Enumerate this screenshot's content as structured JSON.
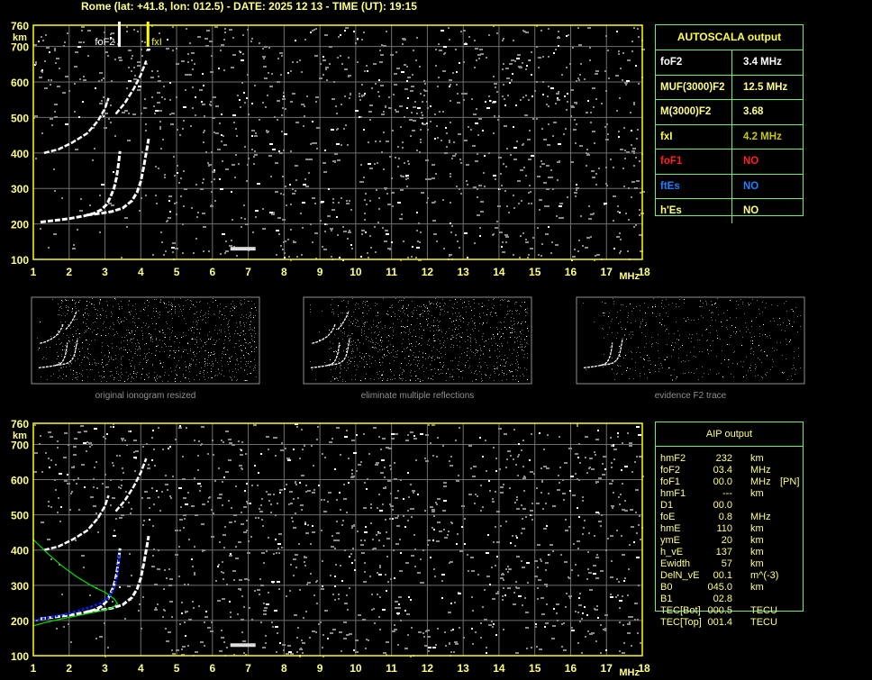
{
  "header": {
    "title": "Rome (lat: +41.8, lon: 012.5) - DATE: 2025 12 13 - TIME (UT): 19:15"
  },
  "colors": {
    "axis": "#ffff00",
    "label": "#ffff80",
    "grid": "#707070",
    "trace": "#ffffff",
    "border": "#70f070",
    "foF1": "#ff2020",
    "ftEs": "#1e80ff",
    "fxI": "#d0d000",
    "model_green": "#00e000",
    "model_blue": "#0020ff"
  },
  "autoscala": {
    "title": "AUTOSCALA output",
    "rows": [
      {
        "label": "foF2",
        "value": "3.4 MHz",
        "label_color": "#ffffff",
        "value_color": "#ffffff"
      },
      {
        "label": "MUF(3000)F2",
        "value": "12.5 MHz",
        "label_color": "#ffff80",
        "value_color": "#ffff80"
      },
      {
        "label": "M(3000)F2",
        "value": "3.68",
        "label_color": "#ffff80",
        "value_color": "#ffff80"
      },
      {
        "label": "fxI",
        "value": "4.2 MHz",
        "label_color": "#ffff40",
        "value_color": "#c8c800"
      },
      {
        "label": "foF1",
        "value": "NO",
        "label_color": "#ff2020",
        "value_color": "#ff2020"
      },
      {
        "label": "ftEs",
        "value": "NO",
        "label_color": "#1e80ff",
        "value_color": "#1e80ff"
      },
      {
        "label": "h'Es",
        "value": "NO",
        "label_color": "#ffff80",
        "value_color": "#ffff80"
      }
    ]
  },
  "aip": {
    "title": "AIP output",
    "rows": [
      {
        "label": "hmF2",
        "value": "232",
        "unit": "km",
        "extra": ""
      },
      {
        "label": "foF2",
        "value": "03.4",
        "unit": "MHz",
        "extra": ""
      },
      {
        "label": "foF1",
        "value": "00.0",
        "unit": "MHz",
        "extra": "[PN]"
      },
      {
        "label": "hmF1",
        "value": "---",
        "unit": "km",
        "extra": ""
      },
      {
        "label": "D1",
        "value": "00.0",
        "unit": "",
        "extra": ""
      },
      {
        "label": "foE",
        "value": "0.8",
        "unit": "MHz",
        "extra": ""
      },
      {
        "label": "hmE",
        "value": "110",
        "unit": "km",
        "extra": ""
      },
      {
        "label": "ymE",
        "value": "20",
        "unit": "km",
        "extra": ""
      },
      {
        "label": "h_vE",
        "value": "137",
        "unit": "km",
        "extra": ""
      },
      {
        "label": "Ewidth",
        "value": "57",
        "unit": "km",
        "extra": ""
      },
      {
        "label": "DelN_vE",
        "value": "00.1",
        "unit": "m^(-3)",
        "extra": ""
      },
      {
        "label": "B0",
        "value": "045.0",
        "unit": "km",
        "extra": ""
      },
      {
        "label": "B1",
        "value": "02.8",
        "unit": "",
        "extra": ""
      },
      {
        "label": "TEC[Bot]",
        "value": "000.5",
        "unit": "TECU",
        "extra": ""
      },
      {
        "label": "TEC[Top]",
        "value": "001.4",
        "unit": "TECU",
        "extra": ""
      }
    ]
  },
  "thumbnails": [
    {
      "caption": "original ionogram resized"
    },
    {
      "caption": "eliminate multiple reflections"
    },
    {
      "caption": "evidence F2 trace"
    }
  ],
  "chart_data": {
    "type": "scatter",
    "xlabel": "MHz",
    "ylabel": "km",
    "xlim": [
      1,
      18
    ],
    "ylim": [
      100,
      760
    ],
    "x_ticks": [
      "1",
      "2",
      "3",
      "4",
      "5",
      "6",
      "7",
      "8",
      "9",
      "10",
      "11",
      "12",
      "13",
      "14",
      "15",
      "16",
      "17",
      "18"
    ],
    "y_ticks": [
      "100",
      "200",
      "300",
      "400",
      "500",
      "600",
      "700",
      "760"
    ],
    "grid": true,
    "markers": [
      {
        "label": "foF2",
        "freq": 3.4
      },
      {
        "label": "fxI",
        "freq": 4.2
      }
    ],
    "traces": {
      "o_trace": [
        [
          1.2,
          205
        ],
        [
          1.6,
          210
        ],
        [
          2.0,
          215
        ],
        [
          2.4,
          222
        ],
        [
          2.7,
          230
        ],
        [
          2.9,
          240
        ],
        [
          3.05,
          255
        ],
        [
          3.15,
          275
        ],
        [
          3.25,
          300
        ],
        [
          3.32,
          330
        ],
        [
          3.38,
          370
        ],
        [
          3.42,
          405
        ]
      ],
      "x_trace": [
        [
          2.5,
          225
        ],
        [
          2.9,
          230
        ],
        [
          3.2,
          235
        ],
        [
          3.5,
          245
        ],
        [
          3.75,
          265
        ],
        [
          3.9,
          290
        ],
        [
          4.0,
          320
        ],
        [
          4.08,
          360
        ],
        [
          4.15,
          400
        ],
        [
          4.22,
          440
        ]
      ],
      "o_trace_2hop": [
        [
          1.3,
          400
        ],
        [
          1.7,
          410
        ],
        [
          2.1,
          430
        ],
        [
          2.5,
          455
        ],
        [
          2.8,
          490
        ],
        [
          3.0,
          525
        ],
        [
          3.1,
          555
        ]
      ],
      "x_trace_2hop": [
        [
          3.3,
          510
        ],
        [
          3.55,
          540
        ],
        [
          3.8,
          580
        ],
        [
          4.0,
          620
        ],
        [
          4.15,
          660
        ]
      ]
    },
    "model_profile_green": [
      [
        1.0,
        430
      ],
      [
        1.4,
        390
      ],
      [
        1.8,
        355
      ],
      [
        2.2,
        325
      ],
      [
        2.6,
        300
      ],
      [
        3.0,
        280
      ],
      [
        3.25,
        262
      ],
      [
        3.35,
        248
      ],
      [
        3.2,
        236
      ],
      [
        2.8,
        225
      ],
      [
        2.3,
        215
      ],
      [
        1.8,
        205
      ],
      [
        1.3,
        193
      ],
      [
        1.0,
        185
      ]
    ],
    "model_trace_blue": [
      [
        1.0,
        200
      ],
      [
        1.5,
        210
      ],
      [
        2.0,
        220
      ],
      [
        2.5,
        235
      ],
      [
        2.9,
        250
      ],
      [
        3.1,
        265
      ],
      [
        3.25,
        290
      ],
      [
        3.33,
        320
      ],
      [
        3.38,
        360
      ],
      [
        3.4,
        395
      ]
    ]
  }
}
